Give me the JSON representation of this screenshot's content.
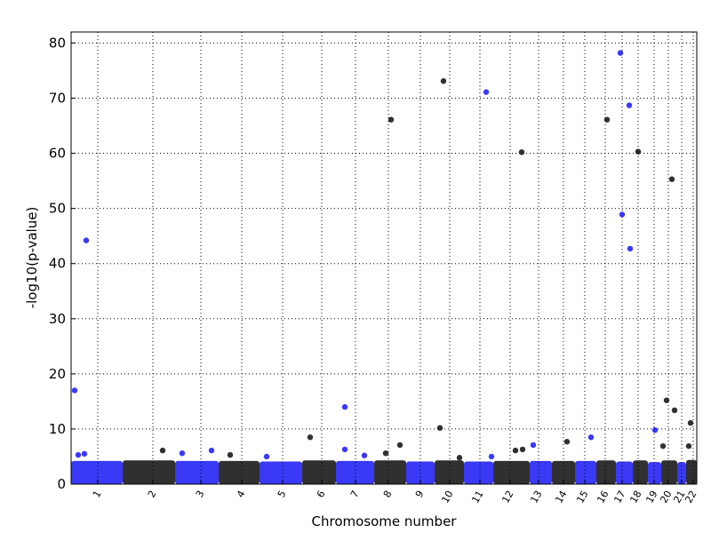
{
  "chart_data": {
    "type": "scatter",
    "xlabel": "Chromosome number",
    "ylabel": "-log10(p-value)",
    "xlim": [
      0,
      704
    ],
    "ylim": [
      0,
      82
    ],
    "yticks": [
      0,
      10,
      20,
      30,
      40,
      50,
      60,
      70,
      80
    ],
    "xticks": [
      {
        "value": 30,
        "label": "1"
      },
      {
        "value": 92,
        "label": "2"
      },
      {
        "value": 146,
        "label": "3"
      },
      {
        "value": 192,
        "label": "4"
      },
      {
        "value": 238,
        "label": "5"
      },
      {
        "value": 282,
        "label": "6"
      },
      {
        "value": 320,
        "label": "7"
      },
      {
        "value": 357,
        "label": "8"
      },
      {
        "value": 393,
        "label": "9"
      },
      {
        "value": 426,
        "label": "10"
      },
      {
        "value": 460,
        "label": "11"
      },
      {
        "value": 494,
        "label": "12"
      },
      {
        "value": 526,
        "label": "13"
      },
      {
        "value": 554,
        "label": "14"
      },
      {
        "value": 578,
        "label": "15"
      },
      {
        "value": 601,
        "label": "16"
      },
      {
        "value": 620,
        "label": "17"
      },
      {
        "value": 638,
        "label": "18"
      },
      {
        "value": 656,
        "label": "19"
      },
      {
        "value": 672,
        "label": "20"
      },
      {
        "value": 687,
        "label": "21"
      },
      {
        "value": 700,
        "label": "22"
      }
    ],
    "grid": true,
    "segment_colors": [
      "#2424f5",
      "#1a1a1a"
    ],
    "segments": [
      {
        "start": 0,
        "end": 58,
        "top": 4.2
      },
      {
        "start": 58,
        "end": 117,
        "top": 4.3
      },
      {
        "start": 117,
        "end": 166,
        "top": 4.2
      },
      {
        "start": 166,
        "end": 212,
        "top": 4.2
      },
      {
        "start": 212,
        "end": 260,
        "top": 4.1
      },
      {
        "start": 260,
        "end": 298,
        "top": 4.3
      },
      {
        "start": 298,
        "end": 341,
        "top": 4.2
      },
      {
        "start": 341,
        "end": 377,
        "top": 4.3
      },
      {
        "start": 377,
        "end": 409,
        "top": 4.1
      },
      {
        "start": 409,
        "end": 442,
        "top": 4.3
      },
      {
        "start": 442,
        "end": 475,
        "top": 4.1
      },
      {
        "start": 475,
        "end": 516,
        "top": 4.2
      },
      {
        "start": 516,
        "end": 541,
        "top": 4.2
      },
      {
        "start": 541,
        "end": 567,
        "top": 4.2
      },
      {
        "start": 567,
        "end": 591,
        "top": 4.2
      },
      {
        "start": 591,
        "end": 613,
        "top": 4.3
      },
      {
        "start": 613,
        "end": 632,
        "top": 4.1
      },
      {
        "start": 632,
        "end": 649,
        "top": 4.3
      },
      {
        "start": 649,
        "end": 664,
        "top": 4.0
      },
      {
        "start": 664,
        "end": 682,
        "top": 4.3
      },
      {
        "start": 682,
        "end": 692,
        "top": 4.0
      },
      {
        "start": 692,
        "end": 704,
        "top": 4.4
      }
    ],
    "series": [
      {
        "color": "#2424f5",
        "x": [
          17,
          4,
          308,
          467,
          618,
          628,
          620,
          629,
          585,
          657,
          520,
          8,
          15,
          125,
          158,
          308,
          220,
          330,
          473
        ],
        "values": [
          44.2,
          17,
          14.0,
          71.1,
          78.2,
          68.7,
          48.9,
          42.7,
          8.5,
          9.8,
          7.1,
          5.3,
          5.5,
          5.6,
          6.1,
          6.3,
          5.0,
          5.2,
          5.0
        ]
      },
      {
        "color": "#1a1a1a",
        "x": [
          360,
          419,
          507,
          603,
          638,
          676,
          670,
          679,
          697,
          415,
          269,
          370,
          558,
          666,
          695,
          103,
          500,
          508,
          354,
          179,
          437
        ],
        "values": [
          66.1,
          73.1,
          60.2,
          66.1,
          60.3,
          55.3,
          15.2,
          13.4,
          11.1,
          10.2,
          8.5,
          7.1,
          7.7,
          6.9,
          6.9,
          6.1,
          6.1,
          6.3,
          5.6,
          5.3,
          4.8
        ]
      }
    ]
  }
}
